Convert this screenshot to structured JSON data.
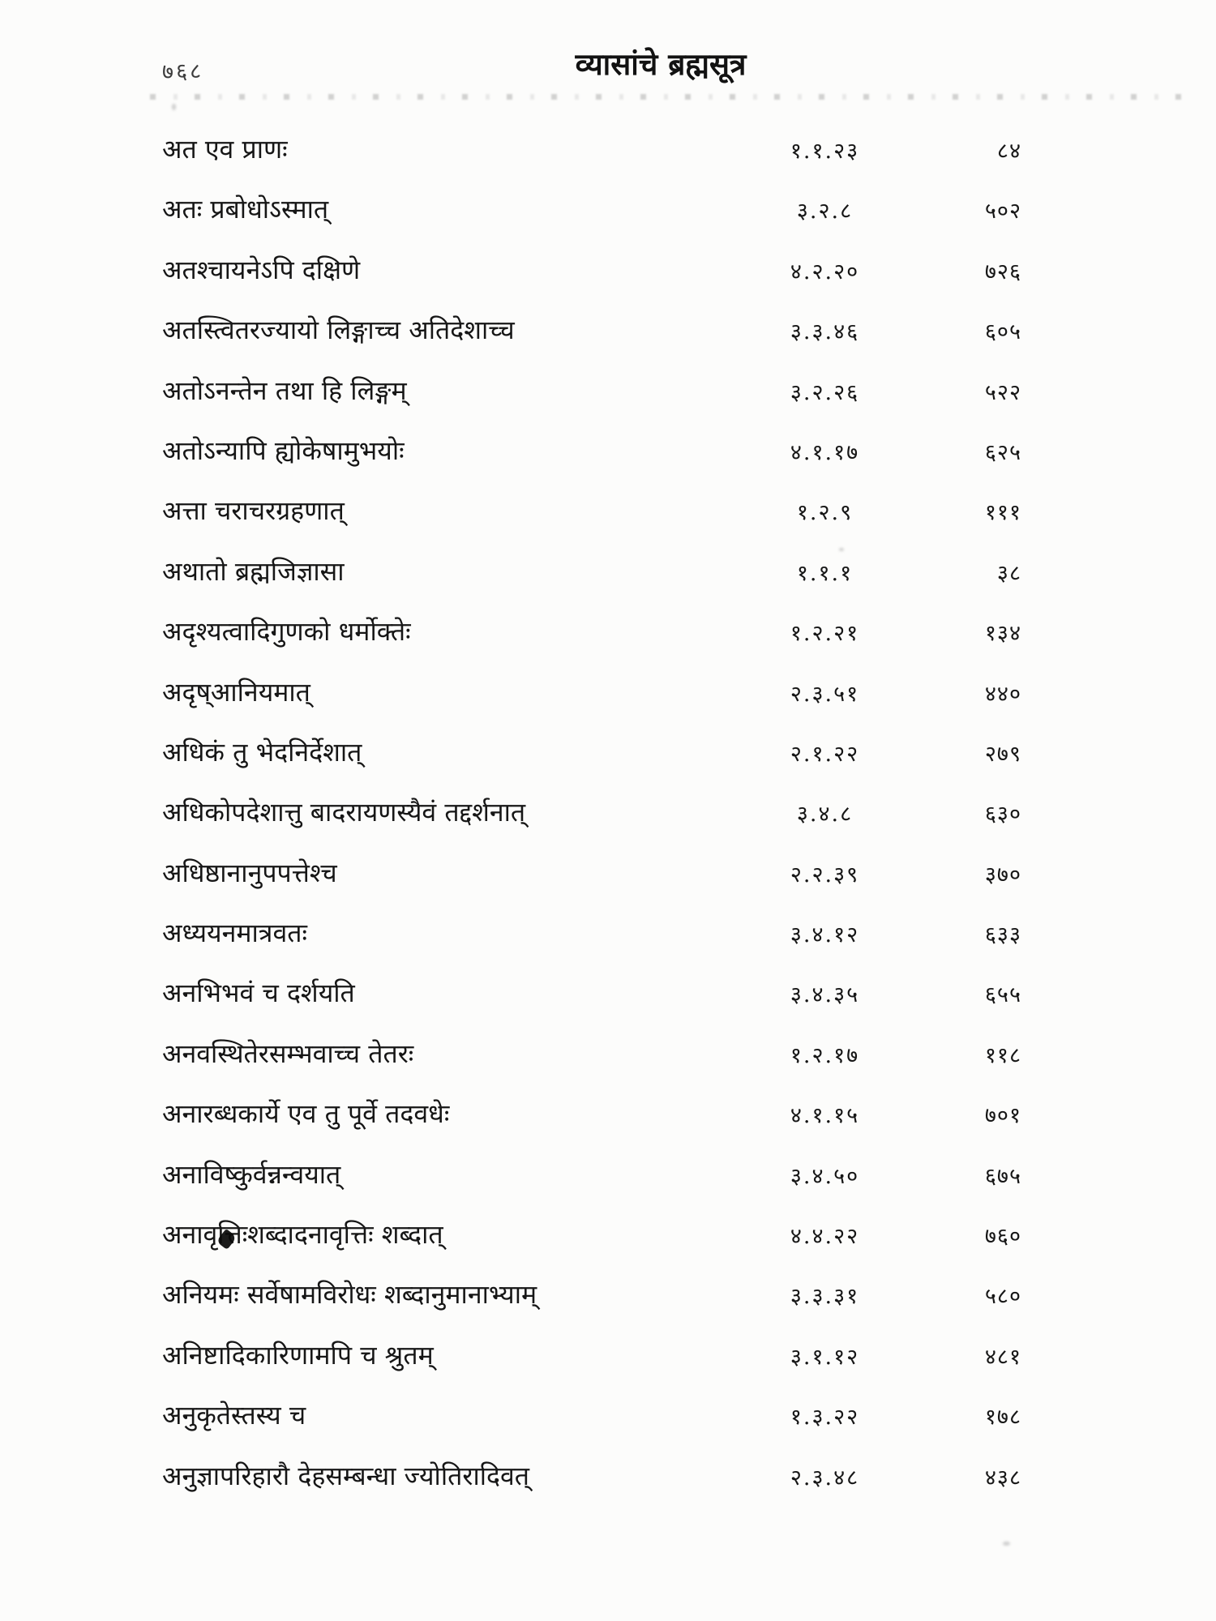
{
  "page": {
    "folio_number": "७६८",
    "title": "व्यासांचे ब्रह्मसूत्र"
  },
  "index": {
    "columns": [
      "sutra_text",
      "sutra_number",
      "page_number"
    ],
    "rows": [
      {
        "text": "अत एव प्राणः",
        "sutra": "१.१.२३",
        "page": "८४"
      },
      {
        "text": "अतः प्रबोधोऽस्मात्",
        "sutra": "३.२.८",
        "page": "५०२"
      },
      {
        "text": "अतश्चायनेऽपि दक्षिणे",
        "sutra": "४.२.२०",
        "page": "७२६"
      },
      {
        "text": "अतस्त्वितरज्यायो लिङ्गाच्च अतिदेशाच्च",
        "sutra": "३.३.४६",
        "page": "६०५"
      },
      {
        "text": "अतोऽनन्तेन तथा हि लिङ्गम्",
        "sutra": "३.२.२६",
        "page": "५२२"
      },
      {
        "text": "अतोऽन्यापि ह्योकेषामुभयोः",
        "sutra": "४.१.१७",
        "page": "६२५"
      },
      {
        "text": "अत्ता चराचरग्रहणात्",
        "sutra": "१.२.९",
        "page": "१११"
      },
      {
        "text": "अथातो ब्रह्मजिज्ञासा",
        "sutra": "१.१.१",
        "page": "३८"
      },
      {
        "text": "अदृश्यत्वादिगुणको धर्मोक्तेः",
        "sutra": "१.२.२१",
        "page": "१३४"
      },
      {
        "text": "अदृष्आनियमात्",
        "sutra": "२.३.५१",
        "page": "४४०"
      },
      {
        "text": "अधिकं तु भेदनिर्देशात्",
        "sutra": "२.१.२२",
        "page": "२७९"
      },
      {
        "text": "अधिकोपदेशात्तु बादरायणस्यैवं तद्दर्शनात्",
        "sutra": "३.४.८",
        "page": "६३०"
      },
      {
        "text": "अधिष्ठानानुपपत्तेश्च",
        "sutra": "२.२.३९",
        "page": "३७०"
      },
      {
        "text": "अध्ययनमात्रवतः",
        "sutra": "३.४.१२",
        "page": "६३३"
      },
      {
        "text": "अनभिभवं च दर्शयति",
        "sutra": "३.४.३५",
        "page": "६५५"
      },
      {
        "text": "अनवस्थितेरसम्भवाच्च तेतरः",
        "sutra": "१.२.१७",
        "page": "११८"
      },
      {
        "text": "अनारब्धकार्ये एव तु पूर्वे तदवधेः",
        "sutra": "४.१.१५",
        "page": "७०१"
      },
      {
        "text": "अनाविष्कुर्वन्नन्वयात्",
        "sutra": "३.४.५०",
        "page": "६७५"
      },
      {
        "text": "अनावृत्तिःशब्दादनावृत्तिः शब्दात्",
        "sutra": "४.४.२२",
        "page": "७६०"
      },
      {
        "text": "अनियमः सर्वेषामविरोधः शब्दानुमानाभ्याम्",
        "sutra": "३.३.३१",
        "page": "५८०"
      },
      {
        "text": "अनिष्टादिकारिणामपि च श्रुतम्",
        "sutra": "३.१.१२",
        "page": "४८१"
      },
      {
        "text": "अनुकृतेस्तस्य च",
        "sutra": "१.३.२२",
        "page": "१७८"
      },
      {
        "text": "अनुज्ञापरिहारौ देहसम्बन्धा ज्योतिरादिवत्",
        "sutra": "२.३.४८",
        "page": "४३८"
      }
    ]
  }
}
